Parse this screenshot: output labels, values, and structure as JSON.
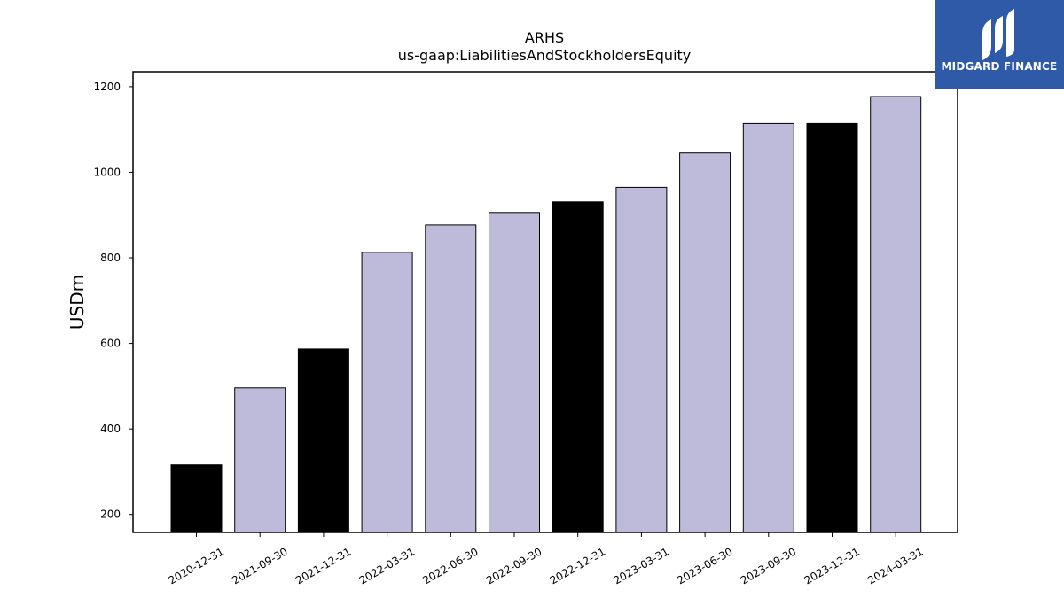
{
  "logo": {
    "text": "MIDGARD FINANCE",
    "icon": "midgard-logo-icon",
    "bg_color": "#2f5aa8"
  },
  "chart_data": {
    "type": "bar",
    "title": "ARHS",
    "subtitle": "us-gaap:LiabilitiesAndStockholdersEquity",
    "xlabel": "",
    "ylabel": "USDm",
    "ylim": [
      158,
      1235
    ],
    "yticks": [
      200,
      400,
      600,
      800,
      1000,
      1200
    ],
    "categories": [
      "2020-12-31",
      "2021-09-30",
      "2021-12-31",
      "2022-03-31",
      "2022-06-30",
      "2022-09-30",
      "2022-12-31",
      "2023-03-31",
      "2023-06-30",
      "2023-09-30",
      "2023-12-31",
      "2024-03-31"
    ],
    "values": [
      316,
      496,
      587,
      813,
      877,
      906,
      931,
      965,
      1045,
      1114,
      1114,
      1177
    ],
    "bar_colors": [
      "#000000",
      "#bebbda",
      "#000000",
      "#bebbda",
      "#bebbda",
      "#bebbda",
      "#000000",
      "#bebbda",
      "#bebbda",
      "#bebbda",
      "#000000",
      "#bebbda"
    ],
    "grid": false,
    "legend": "none"
  }
}
